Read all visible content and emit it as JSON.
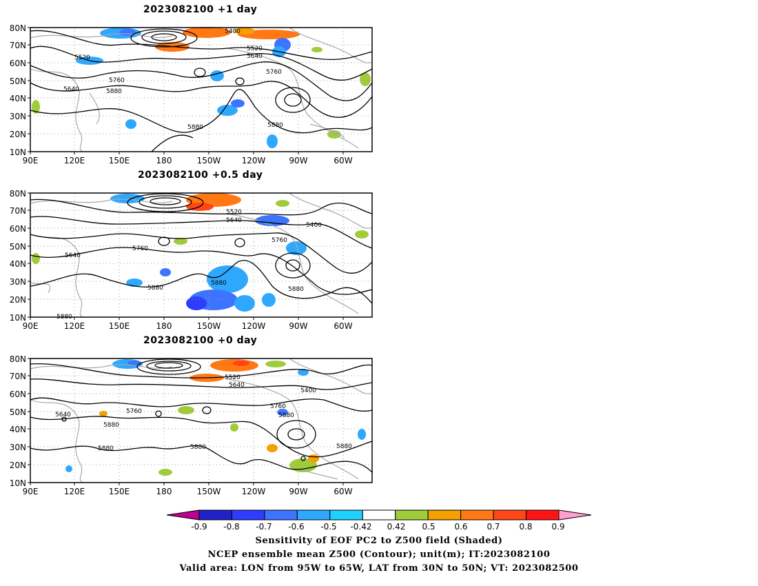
{
  "panels": [
    {
      "title": "2023082100  +1 day",
      "lat_ticks": [
        "80N",
        "70N",
        "60N",
        "50N",
        "40N",
        "30N",
        "20N",
        "10N"
      ],
      "lon_ticks": [
        "90E",
        "120E",
        "150E",
        "180",
        "150W",
        "120W",
        "90W",
        "60W"
      ],
      "contour_labels": [
        "5400",
        "5520",
        "5520",
        "5640",
        "5640",
        "5760",
        "5760",
        "5880",
        "5880",
        "5880"
      ]
    },
    {
      "title": "2023082100  +0.5 day",
      "lat_ticks": [
        "80N",
        "70N",
        "60N",
        "50N",
        "40N",
        "30N",
        "20N",
        "10N"
      ],
      "lon_ticks": [
        "90E",
        "120E",
        "150E",
        "180",
        "150W",
        "120W",
        "90W",
        "60W"
      ],
      "contour_labels": [
        "5520",
        "5640",
        "5400",
        "5760",
        "5640",
        "5760",
        "5880",
        "5880",
        "5880",
        "5880"
      ]
    },
    {
      "title": "2023082100  +0 day",
      "lat_ticks": [
        "80N",
        "70N",
        "60N",
        "50N",
        "40N",
        "30N",
        "20N",
        "10N"
      ],
      "lon_ticks": [
        "90E",
        "120E",
        "150E",
        "180",
        "150W",
        "120W",
        "90W",
        "60W"
      ],
      "contour_labels": [
        "5520",
        "5640",
        "5400",
        "5640",
        "5760",
        "5760",
        "5880",
        "5880",
        "5880",
        "5880",
        "5880"
      ]
    }
  ],
  "colorbar": {
    "labels": [
      "-0.9",
      "-0.8",
      "-0.7",
      "-0.6",
      "-0.5",
      "-0.42",
      "0.42",
      "0.5",
      "0.6",
      "0.7",
      "0.8",
      "0.9"
    ],
    "colors": [
      "#1E22C8",
      "#2E3CFF",
      "#3C74FF",
      "#2EA8FF",
      "#1ED2FF",
      "#FFFFFF",
      "#A0CC3C",
      "#F5A000",
      "#FF7814",
      "#FF4614",
      "#FF1414"
    ],
    "left_arrow_color": "#C00090",
    "right_arrow_color": "#FFA0D0"
  },
  "caption": {
    "line1": "Sensitivity of EOF PC2 to Z500 field (Shaded)",
    "line2": "NCEP ensemble mean Z500 (Contour); unit(m); IT:2023082100",
    "line3": "Valid area: LON from 95W to 65W, LAT from 30N to 50N; VT: 2023082500"
  }
}
